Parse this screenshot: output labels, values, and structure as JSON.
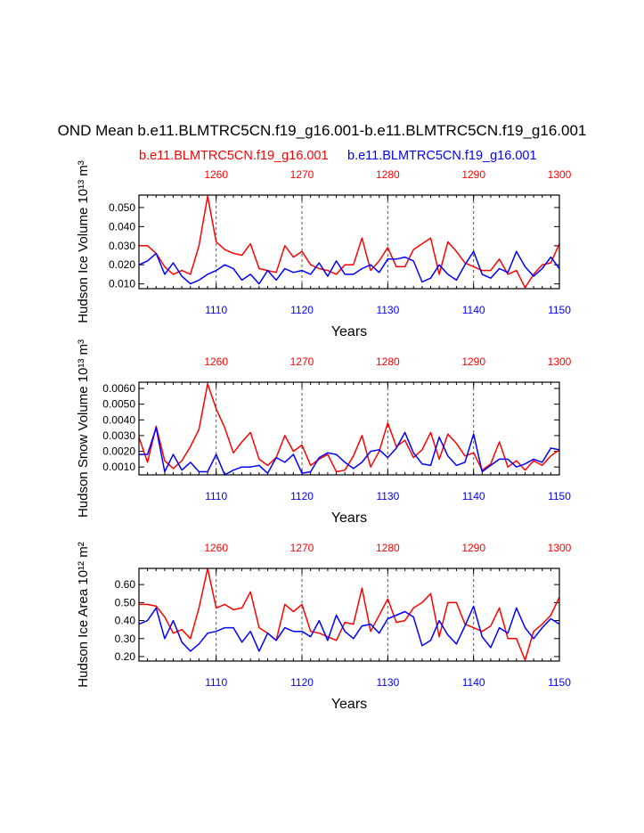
{
  "title": "OND Mean b.e11.BLMTRC5CN.f19_g16.001-b.e11.BLMTRC5CN.f19_g16.001",
  "legend": {
    "red_label": "b.e11.BLMTRC5CN.f19_g16.001",
    "blue_label": "b.e11.BLMTRC5CN.f19_g16.001"
  },
  "colors": {
    "series_red": "#ff0000",
    "series_blue": "#0000ff",
    "axis": "#000000"
  },
  "chart_data": [
    {
      "type": "line",
      "ylabel": "Hudson Ice Volume 10¹³ m³",
      "xlabel": "Years",
      "xlim_bottom": [
        1101,
        1150
      ],
      "xlim_top": [
        1251,
        1300
      ],
      "ylim": [
        0.0075,
        0.0565
      ],
      "yticks": [
        "0.010",
        "0.020",
        "0.030",
        "0.040",
        "0.050"
      ],
      "xticks_bottom": [
        "1110",
        "1120",
        "1130",
        "1140",
        "1150"
      ],
      "xticks_top": [
        "1260",
        "1270",
        "1280",
        "1290",
        "1300"
      ],
      "series": [
        {
          "name": "b.e11.BLMTRC5CN.f19_g16.001",
          "axis": "top",
          "values": [
            0.03,
            0.03,
            0.026,
            0.019,
            0.015,
            0.017,
            0.015,
            0.03,
            0.056,
            0.032,
            0.028,
            0.026,
            0.025,
            0.031,
            0.018,
            0.017,
            0.016,
            0.03,
            0.024,
            0.027,
            0.02,
            0.018,
            0.017,
            0.015,
            0.02,
            0.02,
            0.034,
            0.017,
            0.022,
            0.029,
            0.019,
            0.019,
            0.028,
            0.031,
            0.034,
            0.015,
            0.032,
            0.027,
            0.021,
            0.019,
            0.017,
            0.017,
            0.023,
            0.015,
            0.017,
            0.008,
            0.015,
            0.02,
            0.021,
            0.031
          ]
        },
        {
          "name": "b.e11.BLMTRC5CN.f19_g16.001",
          "axis": "bottom",
          "values": [
            0.02,
            0.022,
            0.026,
            0.015,
            0.021,
            0.014,
            0.01,
            0.012,
            0.015,
            0.017,
            0.02,
            0.018,
            0.012,
            0.015,
            0.01,
            0.017,
            0.012,
            0.018,
            0.016,
            0.017,
            0.015,
            0.021,
            0.014,
            0.022,
            0.015,
            0.015,
            0.018,
            0.02,
            0.016,
            0.023,
            0.023,
            0.024,
            0.022,
            0.011,
            0.013,
            0.02,
            0.015,
            0.012,
            0.02,
            0.027,
            0.015,
            0.013,
            0.018,
            0.016,
            0.027,
            0.019,
            0.014,
            0.018,
            0.024,
            0.018
          ]
        }
      ]
    },
    {
      "type": "line",
      "ylabel": "Hudson Snow Volume 10¹³ m³",
      "xlabel": "Years",
      "xlim_bottom": [
        1101,
        1150
      ],
      "xlim_top": [
        1251,
        1300
      ],
      "ylim": [
        0.0005,
        0.0064
      ],
      "yticks": [
        "0.0010",
        "0.0020",
        "0.0030",
        "0.0040",
        "0.0050",
        "0.0060"
      ],
      "xticks_bottom": [
        "1110",
        "1120",
        "1130",
        "1140",
        "1150"
      ],
      "xticks_top": [
        "1260",
        "1270",
        "1280",
        "1290",
        "1300"
      ],
      "series": [
        {
          "name": "b.e11.BLMTRC5CN.f19_g16.001",
          "axis": "top",
          "values": [
            0.0029,
            0.0013,
            0.0036,
            0.0014,
            0.0009,
            0.0014,
            0.0023,
            0.0034,
            0.0063,
            0.0047,
            0.0035,
            0.0019,
            0.0026,
            0.0032,
            0.0015,
            0.0011,
            0.0016,
            0.003,
            0.002,
            0.0024,
            0.0011,
            0.0015,
            0.0018,
            0.0007,
            0.0008,
            0.0017,
            0.003,
            0.001,
            0.002,
            0.0038,
            0.0023,
            0.0027,
            0.0016,
            0.0021,
            0.0032,
            0.0015,
            0.0031,
            0.0025,
            0.0017,
            0.0019,
            0.0008,
            0.0012,
            0.0026,
            0.001,
            0.0014,
            0.0008,
            0.0014,
            0.0011,
            0.0017,
            0.0021
          ]
        },
        {
          "name": "b.e11.BLMTRC5CN.f19_g16.001",
          "axis": "bottom",
          "values": [
            0.0018,
            0.0018,
            0.0035,
            0.0007,
            0.0018,
            0.0008,
            0.0013,
            0.0007,
            0.0007,
            0.0018,
            0.0005,
            0.0008,
            0.001,
            0.001,
            0.0011,
            0.0006,
            0.0016,
            0.0013,
            0.0018,
            0.0006,
            0.0007,
            0.0016,
            0.0019,
            0.0018,
            0.0013,
            0.0009,
            0.0013,
            0.002,
            0.0021,
            0.0016,
            0.0022,
            0.0032,
            0.0019,
            0.0012,
            0.0011,
            0.0029,
            0.0017,
            0.0011,
            0.0013,
            0.0031,
            0.0007,
            0.0011,
            0.0015,
            0.0015,
            0.001,
            0.0012,
            0.0015,
            0.0013,
            0.0022,
            0.0021
          ]
        }
      ]
    },
    {
      "type": "line",
      "ylabel": "Hudson Ice Area 10¹² m²",
      "xlabel": "Years",
      "xlim_bottom": [
        1101,
        1150
      ],
      "xlim_top": [
        1251,
        1300
      ],
      "ylim": [
        0.175,
        0.69
      ],
      "yticks": [
        "0.20",
        "0.30",
        "0.40",
        "0.50",
        "0.60"
      ],
      "xticks_bottom": [
        "1110",
        "1120",
        "1130",
        "1140",
        "1150"
      ],
      "xticks_top": [
        "1260",
        "1270",
        "1280",
        "1290",
        "1300"
      ],
      "series": [
        {
          "name": "b.e11.BLMTRC5CN.f19_g16.001",
          "axis": "top",
          "values": [
            0.49,
            0.49,
            0.48,
            0.42,
            0.33,
            0.35,
            0.3,
            0.47,
            0.69,
            0.47,
            0.49,
            0.46,
            0.47,
            0.56,
            0.36,
            0.33,
            0.29,
            0.49,
            0.45,
            0.49,
            0.34,
            0.33,
            0.31,
            0.29,
            0.39,
            0.38,
            0.58,
            0.34,
            0.43,
            0.52,
            0.39,
            0.4,
            0.47,
            0.5,
            0.55,
            0.31,
            0.5,
            0.5,
            0.38,
            0.36,
            0.34,
            0.37,
            0.47,
            0.3,
            0.3,
            0.18,
            0.34,
            0.38,
            0.43,
            0.53
          ]
        },
        {
          "name": "b.e11.BLMTRC5CN.f19_g16.001",
          "axis": "bottom",
          "values": [
            0.38,
            0.4,
            0.47,
            0.3,
            0.4,
            0.28,
            0.23,
            0.27,
            0.33,
            0.34,
            0.36,
            0.36,
            0.28,
            0.34,
            0.23,
            0.33,
            0.29,
            0.36,
            0.34,
            0.34,
            0.31,
            0.4,
            0.29,
            0.43,
            0.34,
            0.3,
            0.37,
            0.38,
            0.33,
            0.41,
            0.43,
            0.45,
            0.42,
            0.26,
            0.29,
            0.4,
            0.32,
            0.27,
            0.37,
            0.48,
            0.31,
            0.25,
            0.36,
            0.33,
            0.47,
            0.36,
            0.3,
            0.36,
            0.41,
            0.38
          ]
        }
      ]
    }
  ]
}
